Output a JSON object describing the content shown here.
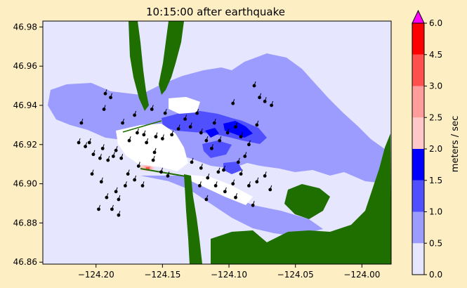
{
  "chart_data": {
    "type": "heatmap",
    "title": "10:15:00 after earthquake",
    "xlabel": "",
    "ylabel": "",
    "xlim": [
      -124.24,
      -123.978
    ],
    "ylim": [
      46.859,
      46.983
    ],
    "x_ticks": [
      {
        "value": -124.2,
        "label": "−124.20"
      },
      {
        "value": -124.15,
        "label": "−124.15"
      },
      {
        "value": -124.1,
        "label": "−124.10"
      },
      {
        "value": -124.05,
        "label": "−124.05"
      },
      {
        "value": -124.0,
        "label": "−124.00"
      }
    ],
    "y_ticks": [
      {
        "value": 46.86,
        "label": "46.86"
      },
      {
        "value": 46.88,
        "label": "46.88"
      },
      {
        "value": 46.9,
        "label": "46.90"
      },
      {
        "value": 46.92,
        "label": "46.92"
      },
      {
        "value": 46.94,
        "label": "46.94"
      },
      {
        "value": 46.96,
        "label": "46.96"
      },
      {
        "value": 46.98,
        "label": "46.98"
      }
    ],
    "colorbar": {
      "label": "meters / sec",
      "extend": "max",
      "over_color": "#ff00ff",
      "levels": [
        {
          "from": 0.0,
          "to": 0.5,
          "color": "#e6e6ff",
          "label": "0.0"
        },
        {
          "from": 0.5,
          "to": 1.0,
          "color": "#9c9cff",
          "label": "0.5"
        },
        {
          "from": 1.0,
          "to": 1.5,
          "color": "#5050ff",
          "label": "1.0"
        },
        {
          "from": 1.5,
          "to": 2.0,
          "color": "#0000ff",
          "label": "1.5"
        },
        {
          "from": 2.0,
          "to": 2.5,
          "color": "#ffc8c8",
          "label": "2.0"
        },
        {
          "from": 2.5,
          "to": 3.0,
          "color": "#ff9c9c",
          "label": "2.5"
        },
        {
          "from": 3.0,
          "to": 4.5,
          "color": "#ff5050",
          "label": "3.0"
        },
        {
          "from": 4.5,
          "to": 6.0,
          "color": "#ff0000",
          "label": "4.5"
        }
      ],
      "top_label": "6.0"
    },
    "land_color": "#1f6e00",
    "gauges": [
      [
        -124.213,
        46.921
      ],
      [
        -124.208,
        46.919
      ],
      [
        -124.202,
        46.915
      ],
      [
        -124.197,
        46.913
      ],
      [
        -124.191,
        46.912
      ],
      [
        -124.187,
        46.914
      ],
      [
        -124.181,
        46.913
      ],
      [
        -124.185,
        46.917
      ],
      [
        -124.195,
        46.918
      ],
      [
        -124.205,
        46.921
      ],
      [
        -124.211,
        46.931
      ],
      [
        -124.194,
        46.938
      ],
      [
        -124.193,
        46.946
      ],
      [
        -124.189,
        46.944
      ],
      [
        -124.175,
        46.922
      ],
      [
        -124.169,
        46.926
      ],
      [
        -124.164,
        46.925
      ],
      [
        -124.162,
        46.921
      ],
      [
        -124.156,
        46.916
      ],
      [
        -124.155,
        46.924
      ],
      [
        -124.15,
        46.923
      ],
      [
        -124.143,
        46.925
      ],
      [
        -124.138,
        46.928
      ],
      [
        -124.129,
        46.929
      ],
      [
        -124.121,
        46.926
      ],
      [
        -124.117,
        46.922
      ],
      [
        -124.113,
        46.918
      ],
      [
        -124.107,
        46.922
      ],
      [
        -124.101,
        46.926
      ],
      [
        -124.095,
        46.929
      ],
      [
        -124.091,
        46.924
      ],
      [
        -124.085,
        46.92
      ],
      [
        -124.079,
        46.93
      ],
      [
        -124.077,
        46.944
      ],
      [
        -124.073,
        46.942
      ],
      [
        -124.068,
        46.94
      ],
      [
        -124.081,
        46.95
      ],
      [
        -124.097,
        46.941
      ],
      [
        -124.111,
        46.931
      ],
      [
        -124.124,
        46.936
      ],
      [
        -124.133,
        46.933
      ],
      [
        -124.148,
        46.936
      ],
      [
        -124.158,
        46.938
      ],
      [
        -124.171,
        46.935
      ],
      [
        -124.18,
        46.931
      ],
      [
        -124.176,
        46.905
      ],
      [
        -124.168,
        46.909
      ],
      [
        -124.171,
        46.902
      ],
      [
        -124.178,
        46.899
      ],
      [
        -124.185,
        46.896
      ],
      [
        -124.192,
        46.893
      ],
      [
        -124.188,
        46.887
      ],
      [
        -124.183,
        46.884
      ],
      [
        -124.196,
        46.901
      ],
      [
        -124.203,
        46.905
      ],
      [
        -124.198,
        46.887
      ],
      [
        -124.183,
        46.892
      ],
      [
        -124.165,
        46.899
      ],
      [
        -124.157,
        46.912
      ],
      [
        -124.151,
        46.906
      ],
      [
        -124.146,
        46.904
      ],
      [
        -124.128,
        46.911
      ],
      [
        -124.121,
        46.908
      ],
      [
        -124.116,
        46.903
      ],
      [
        -124.11,
        46.899
      ],
      [
        -124.103,
        46.896
      ],
      [
        -124.097,
        46.9
      ],
      [
        -124.091,
        46.905
      ],
      [
        -124.085,
        46.899
      ],
      [
        -124.079,
        46.901
      ],
      [
        -124.073,
        46.904
      ],
      [
        -124.069,
        46.897
      ],
      [
        -124.082,
        46.889
      ],
      [
        -124.095,
        46.893
      ],
      [
        -124.108,
        46.906
      ],
      [
        -124.117,
        46.892
      ],
      [
        -124.104,
        46.907
      ],
      [
        -124.093,
        46.911
      ],
      [
        -124.088,
        46.914
      ],
      [
        -124.122,
        46.899
      ]
    ]
  }
}
